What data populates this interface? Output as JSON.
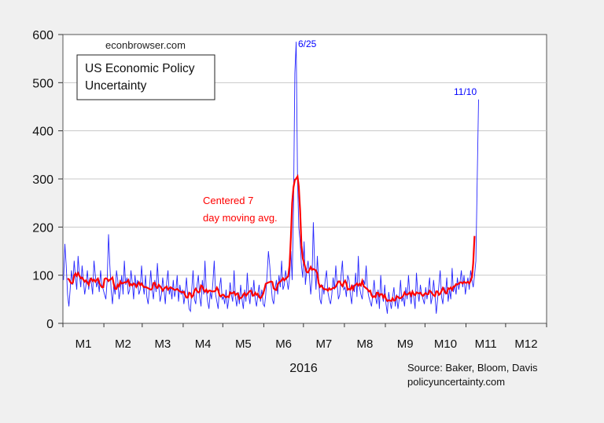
{
  "chart_data": {
    "type": "line",
    "title": "US Economic Policy Uncertainty",
    "site_label": "econbrowser.com",
    "xlabel": "2016",
    "ylabel": "",
    "ylim": [
      0,
      600
    ],
    "yticks": [
      "0",
      "100",
      "200",
      "300",
      "400",
      "500",
      "600"
    ],
    "xticks": [
      "M1",
      "M2",
      "M3",
      "M4",
      "M5",
      "M6",
      "M7",
      "M8",
      "M9",
      "M10",
      "M11",
      "M12"
    ],
    "month_days": [
      31,
      29,
      31,
      30,
      31,
      30,
      31,
      31,
      30,
      31,
      30,
      31
    ],
    "grid": true,
    "series": [
      {
        "name": "",
        "color": "#0000ff",
        "frequency": "daily",
        "values_by_month": [
          [
            90,
            165,
            120,
            60,
            35,
            70,
            110,
            80,
            130,
            95,
            70,
            140,
            100,
            75,
            120,
            90,
            60,
            80,
            110,
            70,
            95,
            85,
            60,
            130,
            100,
            75,
            90,
            65,
            110,
            80,
            70
          ],
          [
            60,
            50,
            90,
            185,
            120,
            70,
            40,
            80,
            60,
            110,
            90,
            50,
            70,
            100,
            60,
            130,
            80,
            95,
            60,
            70,
            110,
            85,
            50,
            100,
            75,
            90,
            60,
            70,
            120
          ],
          [
            80,
            60,
            100,
            55,
            40,
            75,
            110,
            70,
            50,
            90,
            65,
            125,
            80,
            45,
            60,
            95,
            70,
            40,
            85,
            110,
            60,
            75,
            50,
            90,
            55,
            70,
            100,
            45,
            80,
            60,
            70
          ],
          [
            40,
            60,
            95,
            55,
            30,
            25,
            70,
            110,
            50,
            40,
            80,
            100,
            55,
            35,
            90,
            60,
            130,
            70,
            45,
            30,
            65,
            50,
            85,
            130,
            60,
            45,
            30,
            75,
            95,
            50
          ],
          [
            55,
            40,
            70,
            30,
            50,
            85,
            60,
            45,
            110,
            55,
            35,
            65,
            40,
            80,
            50,
            30,
            70,
            45,
            105,
            60,
            40,
            75,
            55,
            90,
            50,
            35,
            60,
            80,
            45,
            70,
            40
          ],
          [
            35,
            60,
            100,
            150,
            120,
            80,
            50,
            40,
            70,
            90,
            60,
            100,
            75,
            130,
            70,
            80,
            110,
            90,
            70,
            95,
            150,
            90,
            240,
            520,
            585,
            300,
            200,
            170,
            120,
            95
          ],
          [
            170,
            80,
            110,
            130,
            100,
            60,
            90,
            210,
            120,
            70,
            140,
            90,
            50,
            40,
            80,
            60,
            90,
            110,
            65,
            50,
            40,
            60,
            95,
            70,
            120,
            80,
            50,
            60,
            100,
            130,
            70
          ],
          [
            75,
            55,
            100,
            90,
            60,
            40,
            80,
            65,
            105,
            55,
            140,
            75,
            60,
            50,
            90,
            80,
            120,
            70,
            55,
            45,
            35,
            60,
            90,
            55,
            40,
            70,
            30,
            100,
            60,
            45,
            80
          ],
          [
            40,
            20,
            65,
            45,
            30,
            55,
            75,
            35,
            60,
            30,
            50,
            90,
            45,
            55,
            35,
            75,
            50,
            100,
            60,
            40,
            70,
            55,
            30,
            105,
            65,
            45,
            80,
            60,
            50,
            40
          ],
          [
            75,
            50,
            70,
            95,
            40,
            55,
            90,
            60,
            20,
            50,
            80,
            110,
            55,
            40,
            75,
            60,
            95,
            45,
            70,
            50,
            115,
            65,
            80,
            60,
            95,
            70,
            85,
            110,
            75,
            100,
            60
          ],
          [
            80,
            95,
            70,
            110,
            90,
            75,
            100,
            130,
            300,
            465
          ]
        ]
      },
      {
        "name": "Centered 7 day moving avg.",
        "color": "#ff0000",
        "derived": "centered 7-day moving average of daily series"
      }
    ],
    "annotations": [
      {
        "text": "6/25",
        "color": "#0000ff"
      },
      {
        "text": "11/10",
        "color": "#0000ff"
      },
      {
        "text_lines": [
          "Centered 7",
          "day moving avg."
        ],
        "color": "#ff0000"
      }
    ],
    "source_lines": [
      "Source: Baker, Bloom, Davis",
      "policyuncertainty.com"
    ]
  }
}
